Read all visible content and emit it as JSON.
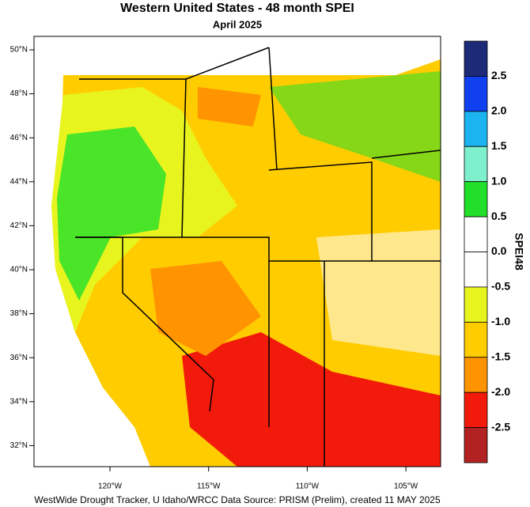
{
  "title": "Western United States - 48 month SPEI",
  "subtitle": "April 2025",
  "lat_labels": [
    "50°N",
    "48°N",
    "46°N",
    "44°N",
    "42°N",
    "40°N",
    "38°N",
    "36°N",
    "34°N",
    "32°N"
  ],
  "lon_labels": [
    "120°W",
    "115°W",
    "110°W",
    "105°W"
  ],
  "colorbar": {
    "title": "SPEI48",
    "labels": [
      "2.5",
      "2.0",
      "1.5",
      "1.0",
      "0.5",
      "0.0",
      "-0.5",
      "-1.0",
      "-1.5",
      "-2.0",
      "-2.5"
    ],
    "colors": [
      "#1c2a78",
      "#1040f0",
      "#1cb4f0",
      "#7ef0cc",
      "#22e02a",
      "#ffffff",
      "#ffffff",
      "#e8f41e",
      "#ffcc00",
      "#ff9400",
      "#f21a0a",
      "#b22222"
    ]
  },
  "footer": "WestWide Drought Tracker, U Idaho/WRCC Data Source: PRISM (Prelim), created 11 MAY 2025"
}
